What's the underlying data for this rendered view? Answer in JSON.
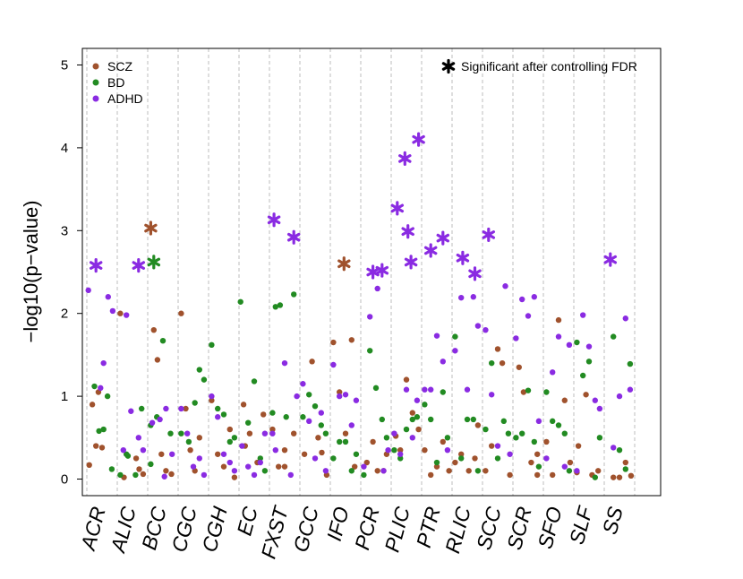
{
  "chart_data": {
    "type": "scatter",
    "title": "",
    "xlabel": "",
    "ylabel": "−log10(p−value)",
    "ylim": [
      -0.2,
      5.2
    ],
    "yticks": [
      0,
      1,
      2,
      3,
      4,
      5
    ],
    "grid": "vertical dashed separators between categories",
    "categories": [
      "ACR",
      "ALIC",
      "BCC",
      "CGC",
      "CGH",
      "EC",
      "FXST",
      "GCC",
      "IFO",
      "PCR",
      "PLIC",
      "PTR",
      "RLIC",
      "SCC",
      "SCR",
      "SFO",
      "SLF",
      "SS"
    ],
    "legend": {
      "placement": "top-left",
      "entries": [
        {
          "label": "SCZ",
          "color": "#a0522d"
        },
        {
          "label": "BD",
          "color": "#228b22"
        },
        {
          "label": "ADHD",
          "color": "#8a2be2"
        }
      ],
      "star_note": "Significant after controlling FDR",
      "star_placement": "top-right"
    },
    "series": [
      {
        "name": "SCZ",
        "color": "#a0522d",
        "points": [
          [
            0.08,
            0.17
          ],
          [
            0.18,
            0.9
          ],
          [
            0.3,
            0.4
          ],
          [
            0.38,
            1.05
          ],
          [
            0.5,
            0.38
          ],
          [
            0.62,
            0.25
          ],
          [
            0.72,
            0.12
          ],
          [
            0.85,
            0.06
          ],
          [
            0.22,
            0.02
          ],
          [
            0.1,
            2.0
          ],
          [
            0.2,
            1.8
          ],
          [
            0.32,
            1.44
          ],
          [
            0.45,
            0.3
          ],
          [
            0.6,
            0.1
          ],
          [
            0.78,
            0.06
          ],
          [
            0.1,
            2.0
          ],
          [
            0.25,
            0.85
          ],
          [
            0.4,
            0.35
          ],
          [
            0.55,
            0.1
          ],
          [
            0.7,
            0.5
          ],
          [
            0.1,
            0.95
          ],
          [
            0.3,
            0.3
          ],
          [
            0.5,
            0.15
          ],
          [
            0.7,
            0.6
          ],
          [
            0.85,
            0.02
          ],
          [
            0.15,
            0.9
          ],
          [
            0.35,
            0.55
          ],
          [
            0.6,
            0.2
          ],
          [
            0.8,
            0.78
          ],
          [
            0.2,
            0.4
          ],
          [
            0.5,
            0.15
          ],
          [
            0.8,
            0.55
          ],
          [
            0.1,
            0.6
          ],
          [
            0.3,
            0.15
          ],
          [
            0.5,
            0.35
          ],
          [
            0.72,
            0.32
          ],
          [
            0.88,
            0.05
          ],
          [
            0.15,
            0.3
          ],
          [
            0.4,
            1.42
          ],
          [
            0.6,
            0.5
          ],
          [
            0.8,
            0.15
          ],
          [
            0.1,
            1.65
          ],
          [
            0.3,
            1.05
          ],
          [
            0.5,
            0.55
          ],
          [
            0.7,
            1.68
          ],
          [
            0.85,
            0.3
          ],
          [
            0.2,
            0.2
          ],
          [
            0.4,
            0.45
          ],
          [
            0.55,
            0.1
          ],
          [
            0.75,
            0.1
          ],
          [
            0.9,
            0.6
          ],
          [
            0.15,
            0.52
          ],
          [
            0.3,
            0.35
          ],
          [
            0.5,
            1.2
          ],
          [
            0.7,
            0.8
          ],
          [
            0.9,
            0.1
          ],
          [
            0.1,
            0.35
          ],
          [
            0.3,
            0.05
          ],
          [
            0.5,
            0.15
          ],
          [
            0.7,
            0.45
          ],
          [
            0.85,
            0.65
          ],
          [
            0.1,
            0.2
          ],
          [
            0.3,
            0.3
          ],
          [
            0.55,
            0.1
          ],
          [
            0.75,
            0.25
          ],
          [
            0.9,
            0.05
          ],
          [
            0.1,
            0.1
          ],
          [
            0.3,
            0.4
          ],
          [
            0.5,
            1.57
          ],
          [
            0.65,
            1.4
          ],
          [
            0.8,
            0.3
          ],
          [
            0.2,
            1.35
          ],
          [
            0.35,
            1.05
          ],
          [
            0.6,
            0.2
          ],
          [
            0.8,
            0.05
          ],
          [
            0.1,
            0.45
          ],
          [
            0.3,
            0.05
          ],
          [
            0.5,
            1.92
          ],
          [
            0.7,
            0.95
          ],
          [
            0.88,
            0.2
          ],
          [
            0.15,
            0.4
          ],
          [
            0.4,
            1.02
          ],
          [
            0.6,
            0.05
          ],
          [
            0.8,
            0.1
          ],
          [
            0.1,
            0.08
          ],
          [
            0.3,
            0.02
          ],
          [
            0.5,
            0.02
          ],
          [
            0.7,
            0.2
          ],
          [
            0.88,
            0.04
          ]
        ],
        "starred": [
          [
            0.1,
            3.03
          ],
          [
            0.45,
            2.6
          ]
        ],
        "starred_cols": [
          2,
          8
        ]
      },
      {
        "name": "BD",
        "color": "#228b22",
        "points": [
          [
            0.25,
            1.12
          ],
          [
            0.4,
            0.58
          ],
          [
            0.55,
            0.6
          ],
          [
            0.68,
            1.0
          ],
          [
            0.82,
            0.12
          ],
          [
            0.35,
            0.28
          ],
          [
            0.1,
            0.05
          ],
          [
            0.3,
            0.3
          ],
          [
            0.6,
            0.05
          ],
          [
            0.8,
            0.85
          ],
          [
            0.1,
            0.65
          ],
          [
            0.3,
            0.75
          ],
          [
            0.5,
            1.67
          ],
          [
            0.75,
            0.55
          ],
          [
            0.1,
            0.18
          ],
          [
            0.35,
            0.45
          ],
          [
            0.55,
            0.92
          ],
          [
            0.7,
            1.32
          ],
          [
            0.85,
            1.2
          ],
          [
            0.1,
            0.55
          ],
          [
            0.3,
            0.85
          ],
          [
            0.5,
            0.78
          ],
          [
            0.7,
            0.45
          ],
          [
            0.85,
            0.5
          ],
          [
            0.1,
            1.62
          ],
          [
            0.3,
            0.68
          ],
          [
            0.5,
            1.18
          ],
          [
            0.7,
            0.25
          ],
          [
            0.85,
            0.1
          ],
          [
            0.05,
            2.14
          ],
          [
            0.2,
            2.08
          ],
          [
            0.35,
            2.1
          ],
          [
            0.55,
            0.75
          ],
          [
            0.8,
            2.23
          ],
          [
            0.1,
            0.8
          ],
          [
            0.3,
            1.02
          ],
          [
            0.5,
            0.88
          ],
          [
            0.7,
            0.65
          ],
          [
            0.85,
            0.55
          ],
          [
            0.1,
            0.75
          ],
          [
            0.3,
            0.45
          ],
          [
            0.5,
            0.45
          ],
          [
            0.7,
            0.1
          ],
          [
            0.85,
            0.3
          ],
          [
            0.1,
            0.25
          ],
          [
            0.3,
            1.55
          ],
          [
            0.5,
            1.1
          ],
          [
            0.7,
            0.72
          ],
          [
            0.85,
            0.5
          ],
          [
            0.1,
            0.05
          ],
          [
            0.3,
            0.25
          ],
          [
            0.5,
            0.6
          ],
          [
            0.7,
            0.72
          ],
          [
            0.85,
            0.75
          ],
          [
            0.1,
            0.35
          ],
          [
            0.3,
            0.72
          ],
          [
            0.5,
            0.2
          ],
          [
            0.7,
            1.05
          ],
          [
            0.85,
            0.5
          ],
          [
            0.1,
            0.9
          ],
          [
            0.3,
            0.25
          ],
          [
            0.5,
            0.72
          ],
          [
            0.7,
            0.72
          ],
          [
            0.85,
            0.1
          ],
          [
            0.1,
            1.72
          ],
          [
            0.3,
            1.4
          ],
          [
            0.5,
            0.25
          ],
          [
            0.7,
            0.7
          ],
          [
            0.85,
            0.55
          ],
          [
            0.1,
            0.6
          ],
          [
            0.3,
            0.55
          ],
          [
            0.5,
            1.07
          ],
          [
            0.7,
            0.45
          ],
          [
            0.85,
            0.15
          ],
          [
            0.1,
            0.5
          ],
          [
            0.3,
            0.7
          ],
          [
            0.5,
            0.65
          ],
          [
            0.7,
            0.55
          ],
          [
            0.85,
            0.1
          ],
          [
            0.1,
            1.05
          ],
          [
            0.3,
            1.25
          ],
          [
            0.5,
            1.42
          ],
          [
            0.7,
            0.02
          ],
          [
            0.85,
            0.5
          ],
          [
            0.1,
            1.65
          ],
          [
            0.3,
            1.72
          ],
          [
            0.5,
            0.35
          ],
          [
            0.7,
            0.12
          ],
          [
            0.85,
            1.39
          ]
        ],
        "starred": [
          [
            0.2,
            2.62
          ]
        ],
        "starred_cols": [
          2
        ]
      },
      {
        "name": "ADHD",
        "color": "#8a2be2",
        "points": [
          [
            0.05,
            2.28
          ],
          [
            0.45,
            1.1
          ],
          [
            0.55,
            1.4
          ],
          [
            0.7,
            2.2
          ],
          [
            0.85,
            2.03
          ],
          [
            0.2,
            0.35
          ],
          [
            0.3,
            1.98
          ],
          [
            0.45,
            0.82
          ],
          [
            0.7,
            0.5
          ],
          [
            0.85,
            0.35
          ],
          [
            0.55,
            0.03
          ],
          [
            0.15,
            0.68
          ],
          [
            0.4,
            0.72
          ],
          [
            0.6,
            0.85
          ],
          [
            0.8,
            0.3
          ],
          [
            0.1,
            0.85
          ],
          [
            0.3,
            0.55
          ],
          [
            0.5,
            0.15
          ],
          [
            0.7,
            0.25
          ],
          [
            0.85,
            0.05
          ],
          [
            0.1,
            1.0
          ],
          [
            0.3,
            0.75
          ],
          [
            0.5,
            0.3
          ],
          [
            0.7,
            0.2
          ],
          [
            0.85,
            0.1
          ],
          [
            0.1,
            0.4
          ],
          [
            0.3,
            0.15
          ],
          [
            0.5,
            0.05
          ],
          [
            0.7,
            0.2
          ],
          [
            0.85,
            0.55
          ],
          [
            0.2,
            0.35
          ],
          [
            0.5,
            1.4
          ],
          [
            0.7,
            0.05
          ],
          [
            0.9,
            1.0
          ],
          [
            0.1,
            0.55
          ],
          [
            0.3,
            0.7
          ],
          [
            0.5,
            0.25
          ],
          [
            0.7,
            0.8
          ],
          [
            0.85,
            0.1
          ],
          [
            0.1,
            1.15
          ],
          [
            0.3,
            1.0
          ],
          [
            0.5,
            1.02
          ],
          [
            0.7,
            0.65
          ],
          [
            0.85,
            0.95
          ],
          [
            0.1,
            1.38
          ],
          [
            0.3,
            1.96
          ],
          [
            0.55,
            2.3
          ],
          [
            0.75,
            0.1
          ],
          [
            0.9,
            0.35
          ],
          [
            0.1,
            0.15
          ],
          [
            0.3,
            0.3
          ],
          [
            0.5,
            1.08
          ],
          [
            0.7,
            0.5
          ],
          [
            0.85,
            0.95
          ],
          [
            0.1,
            0.55
          ],
          [
            0.3,
            1.08
          ],
          [
            0.5,
            1.73
          ],
          [
            0.7,
            1.42
          ],
          [
            0.85,
            0.35
          ],
          [
            0.1,
            1.08
          ],
          [
            0.3,
            2.19
          ],
          [
            0.5,
            1.08
          ],
          [
            0.7,
            2.2
          ],
          [
            0.85,
            1.85
          ],
          [
            0.1,
            1.55
          ],
          [
            0.3,
            1.02
          ],
          [
            0.5,
            0.4
          ],
          [
            0.75,
            2.33
          ],
          [
            0.9,
            0.3
          ],
          [
            0.1,
            1.8
          ],
          [
            0.3,
            2.17
          ],
          [
            0.5,
            1.97
          ],
          [
            0.7,
            2.2
          ],
          [
            0.85,
            0.7
          ],
          [
            0.1,
            1.7
          ],
          [
            0.3,
            1.29
          ],
          [
            0.5,
            1.72
          ],
          [
            0.7,
            0.15
          ],
          [
            0.85,
            1.62
          ],
          [
            0.1,
            0.25
          ],
          [
            0.3,
            1.98
          ],
          [
            0.5,
            1.6
          ],
          [
            0.7,
            0.95
          ],
          [
            0.85,
            0.85
          ],
          [
            0.1,
            0.1
          ],
          [
            0.3,
            0.38
          ],
          [
            0.5,
            1.0
          ],
          [
            0.7,
            1.94
          ],
          [
            0.85,
            1.08
          ]
        ],
        "starred": [
          [
            0.3,
            2.58
          ],
          [
            0.7,
            2.58
          ],
          [
            0.15,
            3.13
          ],
          [
            0.8,
            2.92
          ],
          [
            0.4,
            2.5
          ],
          [
            0.7,
            2.52
          ],
          [
            0.2,
            3.27
          ],
          [
            0.45,
            3.87
          ],
          [
            0.55,
            2.99
          ],
          [
            0.65,
            2.62
          ],
          [
            0.9,
            4.1
          ],
          [
            0.3,
            2.76
          ],
          [
            0.7,
            2.91
          ],
          [
            0.35,
            2.67
          ],
          [
            0.75,
            2.48
          ],
          [
            0.2,
            2.95
          ],
          [
            0.2,
            2.65
          ]
        ],
        "starred_cols": [
          0,
          1,
          6,
          6,
          9,
          9,
          10,
          10,
          10,
          10,
          10,
          11,
          11,
          12,
          12,
          13,
          17
        ]
      }
    ]
  }
}
